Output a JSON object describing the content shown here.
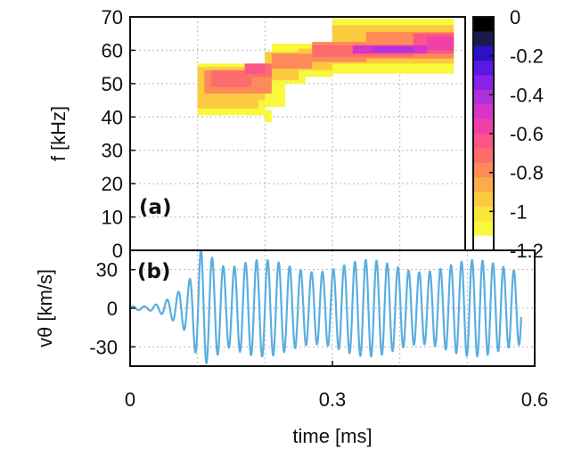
{
  "chart_data": [
    {
      "type": "heatmap",
      "panel_label": "(a)",
      "ylabel": "f [kHz]",
      "xlim": [
        0,
        0.6
      ],
      "ylim": [
        0,
        70
      ],
      "yticks": [
        "0",
        "10",
        "20",
        "30",
        "40",
        "50",
        "60",
        "70"
      ],
      "colorbar": {
        "range": [
          -1.2,
          0
        ],
        "ticks": [
          "0",
          "-0.2",
          "-0.4",
          "-0.6",
          "-0.8",
          "-1",
          "-1.2"
        ],
        "colors": [
          "#000000",
          "#1a1a4a",
          "#2a10c8",
          "#5a18e6",
          "#8822e8",
          "#b030dc",
          "#d834c8",
          "#f040a8",
          "#fa5488",
          "#fc6c6c",
          "#fd8a58",
          "#fdaa4a",
          "#fcca3e",
          "#fae63a",
          "#f8f83c",
          "#ffffff"
        ]
      },
      "grid": true,
      "cells": [
        {
          "t0": 0.1,
          "t1": 0.2,
          "f0": 40.5,
          "f1": 56,
          "v": -1.12
        },
        {
          "t0": 0.2,
          "t1": 0.21,
          "f0": 38.5,
          "f1": 42,
          "v": -1.12
        },
        {
          "t0": 0.2,
          "t1": 0.23,
          "f0": 43,
          "f1": 50,
          "v": -1.1
        },
        {
          "t0": 0.2,
          "t1": 0.26,
          "f0": 50,
          "f1": 56,
          "v": -1.08
        },
        {
          "t0": 0.21,
          "t1": 0.3,
          "f0": 52,
          "f1": 62,
          "v": -1.1
        },
        {
          "t0": 0.3,
          "t1": 0.48,
          "f0": 53,
          "f1": 69.5,
          "v": -1.1
        },
        {
          "t0": 0.1,
          "t1": 0.19,
          "f0": 42.5,
          "f1": 55,
          "v": -0.92
        },
        {
          "t0": 0.19,
          "t1": 0.2,
          "f0": 45,
          "f1": 55,
          "v": -0.92
        },
        {
          "t0": 0.2,
          "t1": 0.25,
          "f0": 51,
          "f1": 59.5,
          "v": -0.9
        },
        {
          "t0": 0.25,
          "t1": 0.3,
          "f0": 54,
          "f1": 60.5,
          "v": -0.92
        },
        {
          "t0": 0.3,
          "t1": 0.48,
          "f0": 56,
          "f1": 67.5,
          "v": -0.9
        },
        {
          "t0": 0.11,
          "t1": 0.21,
          "f0": 47,
          "f1": 54,
          "v": -0.78
        },
        {
          "t0": 0.21,
          "t1": 0.27,
          "f0": 54.5,
          "f1": 59,
          "v": -0.78
        },
        {
          "t0": 0.27,
          "t1": 0.35,
          "f0": 56.5,
          "f1": 62.5,
          "v": -0.8
        },
        {
          "t0": 0.35,
          "t1": 0.48,
          "f0": 57.5,
          "f1": 65.5,
          "v": -0.76
        },
        {
          "t0": 0.12,
          "t1": 0.18,
          "f0": 49,
          "f1": 54,
          "v": -0.7
        },
        {
          "t0": 0.18,
          "t1": 0.21,
          "f0": 52,
          "f1": 56,
          "v": -0.7
        },
        {
          "t0": 0.27,
          "t1": 0.42,
          "f0": 58,
          "f1": 61.5,
          "v": -0.68
        },
        {
          "t0": 0.42,
          "t1": 0.48,
          "f0": 59,
          "f1": 65,
          "v": -0.66
        },
        {
          "t0": 0.17,
          "t1": 0.2,
          "f0": 53,
          "f1": 56,
          "v": -0.6
        },
        {
          "t0": 0.33,
          "t1": 0.44,
          "f0": 59,
          "f1": 61.5,
          "v": -0.52
        },
        {
          "t0": 0.44,
          "t1": 0.48,
          "f0": 60,
          "f1": 64,
          "v": -0.56
        },
        {
          "t0": 0.36,
          "t1": 0.42,
          "f0": 59.5,
          "f1": 61,
          "v": -0.38
        }
      ]
    },
    {
      "type": "line",
      "panel_label": "(b)",
      "xlabel": "time [ms]",
      "ylabel": "vθ [km/s]",
      "xlim": [
        0,
        0.6
      ],
      "ylim": [
        -45,
        45
      ],
      "xticks": [
        "0",
        "0.3",
        "0.6"
      ],
      "yticks": [
        "30",
        "0",
        "-30"
      ],
      "grid": true,
      "series": [
        {
          "color": "#5aaee0",
          "signal": {
            "frequency_khz": [
              59,
              65
            ],
            "amplitude_kms": 40,
            "onset_ms": 0.085,
            "end_ms": 0.58
          }
        }
      ]
    }
  ]
}
